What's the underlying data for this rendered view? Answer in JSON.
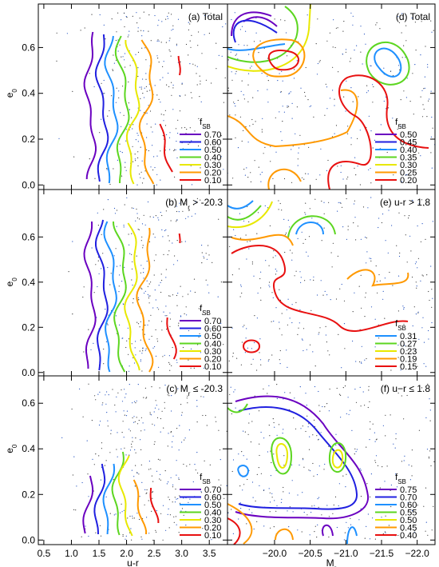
{
  "axes": {
    "columns": [
      {
        "xlim": [
          0.4,
          3.83
        ],
        "xticks": [
          0.5,
          {
            "value": 1,
            "label": "1.0"
          },
          1.5,
          {
            "value": 2,
            "label": "2.0"
          },
          2.5,
          {
            "value": 3,
            "label": "3.0"
          },
          3.5
        ],
        "xlabel": [
          "u-r"
        ]
      },
      {
        "xlim": [
          -19.34,
          -22.25
        ],
        "xticks": [
          {
            "value": -20,
            "label": "−20.0"
          },
          {
            "value": -20.5,
            "label": "−20.5"
          },
          {
            "value": -21,
            "label": "−21.0"
          },
          {
            "value": -21.5,
            "label": "−21.5"
          },
          {
            "value": -22,
            "label": "−22.0"
          }
        ],
        "xlabel": [
          "M",
          "r"
        ]
      }
    ],
    "rows": [
      {
        "ylim": [
          -0.02,
          0.79
        ]
      },
      {
        "ylim": [
          -0.015,
          0.81
        ]
      },
      {
        "ylim": [
          -0.02,
          0.72
        ]
      }
    ],
    "yticks": [
      {
        "value": 0,
        "label": "0.0"
      },
      0.2,
      0.4,
      0.6
    ],
    "ylabel": [
      "e",
      "0"
    ]
  },
  "chart_data": [
    {
      "type": "contour",
      "label": [
        "(a) Total"
      ],
      "legend_title": [
        "f",
        "SB"
      ],
      "values": [
        0.7,
        0.6,
        0.5,
        0.4,
        0.3,
        0.2,
        0.1
      ],
      "value_labels": [
        "0.70",
        "0.60",
        "0.50",
        "0.40",
        "0.30",
        "0.20",
        "0.10"
      ],
      "colors": [
        "#6a00c0",
        "#2020e0",
        "#1e90ff",
        "#5cd620",
        "#e8e800",
        "#ff9900",
        "#e81010"
      ]
    },
    {
      "type": "contour",
      "label": [
        "(b) M",
        "r",
        " > -20.3"
      ],
      "legend_title": [
        "f",
        "SB"
      ],
      "values": [
        0.7,
        0.6,
        0.5,
        0.4,
        0.3,
        0.2,
        0.1
      ],
      "value_labels": [
        "0.70",
        "0.60",
        "0.50",
        "0.40",
        "0.30",
        "0.20",
        "0.10"
      ],
      "colors": [
        "#6a00c0",
        "#2020e0",
        "#1e90ff",
        "#5cd620",
        "#e8e800",
        "#ff9900",
        "#e81010"
      ]
    },
    {
      "type": "contour",
      "label": [
        "(c) M",
        "r",
        " ≤ -20.3"
      ],
      "legend_title": [
        "f",
        "SB"
      ],
      "values": [
        0.7,
        0.6,
        0.5,
        0.4,
        0.3,
        0.2,
        0.1
      ],
      "value_labels": [
        "0.70",
        "0.60",
        "0.50",
        "0.40",
        "0.30",
        "0.20",
        "0.10"
      ],
      "colors": [
        "#6a00c0",
        "#2020e0",
        "#1e90ff",
        "#5cd620",
        "#e8e800",
        "#ff9900",
        "#e81010"
      ]
    },
    {
      "type": "contour",
      "label": [
        "(d) Total"
      ],
      "legend_title": [
        "f",
        "SB"
      ],
      "values": [
        0.5,
        0.45,
        0.4,
        0.35,
        0.3,
        0.25,
        0.2
      ],
      "value_labels": [
        "0.50",
        "0.45",
        "0.40",
        "0.35",
        "0.30",
        "0.25",
        "0.20"
      ],
      "colors": [
        "#6a00c0",
        "#2020e0",
        "#1e90ff",
        "#5cd620",
        "#e8e800",
        "#ff9900",
        "#e81010"
      ]
    },
    {
      "type": "contour",
      "label": [
        "(e) u-r > 1.8"
      ],
      "legend_title": [
        "f",
        "SB"
      ],
      "values": [
        0.31,
        0.27,
        0.23,
        0.19,
        0.15
      ],
      "value_labels": [
        "0.31",
        "0.27",
        "0.23",
        "0.19",
        "0.15"
      ],
      "colors": [
        "#1e90ff",
        "#5cd620",
        "#e8e800",
        "#ff9900",
        "#e81010"
      ]
    },
    {
      "type": "contour",
      "label": [
        "(f) u−r ≤ 1.8"
      ],
      "legend_title": [
        "f",
        "SB"
      ],
      "values": [
        0.75,
        0.7,
        0.6,
        0.55,
        0.5,
        0.45,
        0.4
      ],
      "value_labels": [
        "0.75",
        "0.70",
        "0.60",
        "0.55",
        "0.50",
        "0.45",
        "0.40"
      ],
      "colors": [
        "#6a00c0",
        "#2020e0",
        "#1e90ff",
        "#5cd620",
        "#e8e800",
        "#ff9900",
        "#e81010"
      ]
    }
  ]
}
